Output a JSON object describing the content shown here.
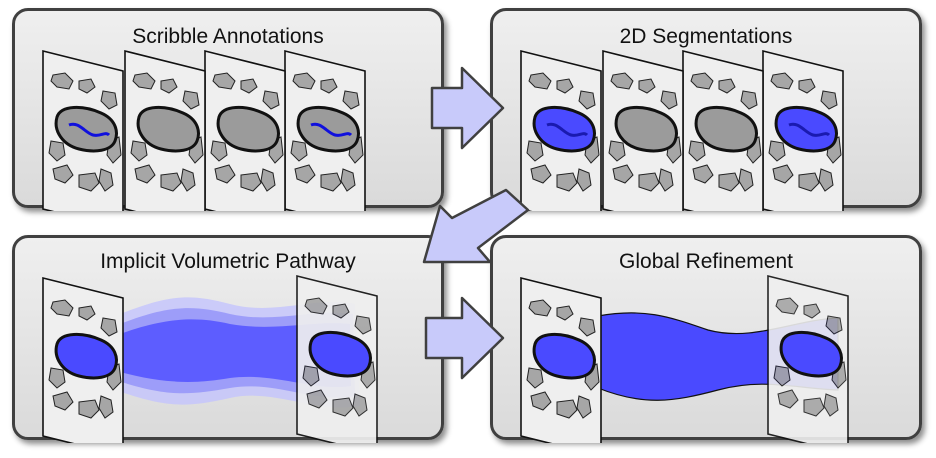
{
  "panels": {
    "scribble": {
      "title": "Scribble Annotations"
    },
    "segmentation": {
      "title": "2D Segmentations"
    },
    "pathway": {
      "title": "Implicit Volumetric Pathway"
    },
    "refinement": {
      "title": "Global Refinement"
    }
  },
  "colors": {
    "slice_fill": "#efefef",
    "blob_fill": "#a6a6a6",
    "organ_fill": "#9b9b9b",
    "segmentation_fill": "#4a4aff",
    "scribble_line": "#1010dd",
    "arrow_fill": "#c8cafa",
    "arrow_stroke": "#404040",
    "pathway_light": "#b4b4fa",
    "pathway_mid": "#8080fa",
    "pathway_dark": "#5050ff"
  }
}
